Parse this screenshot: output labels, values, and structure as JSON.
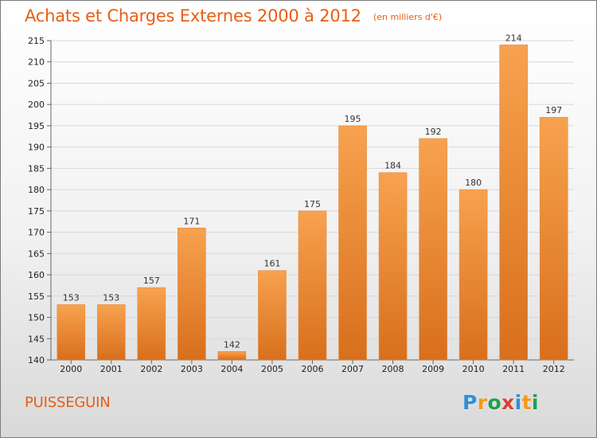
{
  "title": "Achats et Charges Externes 2000 à 2012",
  "subtitle": "(en milliers d'€)",
  "footer_label": "PUISSEGUIN",
  "logo_text": "Proxiti",
  "colors": {
    "accent": "#e85e14",
    "bar_top": "#f7a24f",
    "bar_bottom": "#d86f1c",
    "grid": "#d8d8d8",
    "axis": "#666666"
  },
  "chart_data": {
    "type": "bar",
    "categories": [
      "2000",
      "2001",
      "2002",
      "2003",
      "2004",
      "2005",
      "2006",
      "2007",
      "2008",
      "2009",
      "2010",
      "2011",
      "2012"
    ],
    "values": [
      153,
      153,
      157,
      171,
      142,
      161,
      175,
      195,
      184,
      192,
      180,
      214,
      197
    ],
    "xlabel": "",
    "ylabel": "",
    "ylim": [
      140,
      215
    ],
    "yticks": [
      140,
      145,
      150,
      155,
      160,
      165,
      170,
      175,
      180,
      185,
      190,
      195,
      200,
      205,
      210,
      215
    ],
    "grid": true
  }
}
